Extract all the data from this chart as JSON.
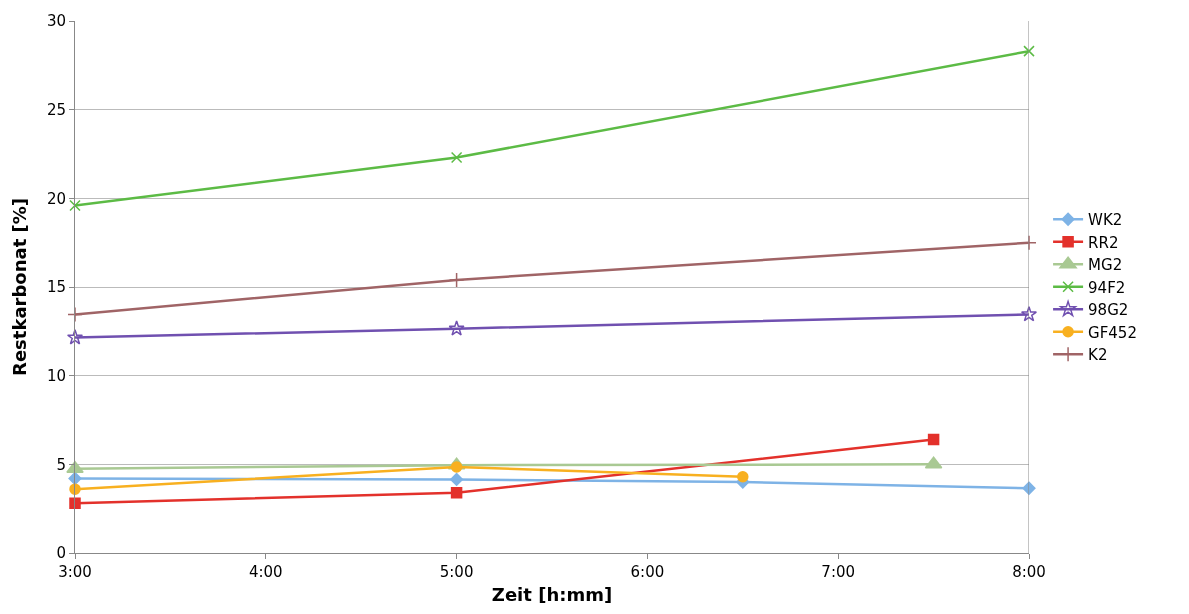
{
  "chart_data": {
    "type": "line",
    "xlabel": "Zeit [h:mm]",
    "ylabel": "Restkarbonat [%]",
    "xlim": [
      3,
      8
    ],
    "xticks": [
      {
        "value": 3,
        "label": "3:00"
      },
      {
        "value": 4,
        "label": "4:00"
      },
      {
        "value": 5,
        "label": "5:00"
      },
      {
        "value": 6,
        "label": "6:00"
      },
      {
        "value": 7,
        "label": "7:00"
      },
      {
        "value": 8,
        "label": "8:00"
      }
    ],
    "ylim": [
      0,
      30
    ],
    "yticks": [
      0,
      5,
      10,
      15,
      20,
      25,
      30
    ],
    "grid": "y",
    "legend": "right",
    "series": [
      {
        "name": "WK2",
        "color": "#7eb3e6",
        "marker": "diamond",
        "x": [
          3,
          5,
          6.5,
          8
        ],
        "values": [
          4.2,
          4.15,
          4.0,
          3.65
        ]
      },
      {
        "name": "RR2",
        "color": "#e3312b",
        "marker": "square",
        "x": [
          3,
          5,
          7.5
        ],
        "values": [
          2.8,
          3.4,
          6.4
        ]
      },
      {
        "name": "MG2",
        "color": "#a9c993",
        "marker": "triangle",
        "x": [
          3,
          5,
          7.5
        ],
        "values": [
          4.75,
          4.95,
          5.0
        ]
      },
      {
        "name": "94F2",
        "color": "#5cbb45",
        "marker": "cross",
        "x": [
          3,
          5,
          8
        ],
        "values": [
          19.6,
          22.3,
          28.3
        ]
      },
      {
        "name": "98G2",
        "color": "#7050b0",
        "marker": "star",
        "x": [
          3,
          5,
          8
        ],
        "values": [
          12.15,
          12.65,
          13.45
        ]
      },
      {
        "name": "GF452",
        "color": "#f8b020",
        "marker": "circle",
        "x": [
          3,
          5,
          6.5
        ],
        "values": [
          3.6,
          4.85,
          4.3
        ]
      },
      {
        "name": "K2",
        "color": "#a06466",
        "marker": "plus",
        "x": [
          3,
          5,
          8
        ],
        "values": [
          13.45,
          15.4,
          17.5
        ]
      }
    ]
  }
}
